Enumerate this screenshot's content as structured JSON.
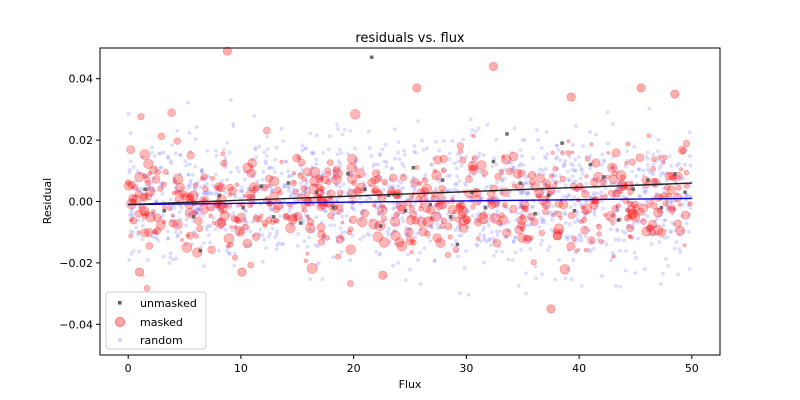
{
  "chart_data": {
    "type": "scatter",
    "title": "residuals vs. flux",
    "xlabel": "Flux",
    "ylabel": "Residual",
    "xlim": [
      -2.5,
      52.5
    ],
    "ylim": [
      -0.05,
      0.05
    ],
    "xticks": [
      0,
      10,
      20,
      30,
      40,
      50
    ],
    "xtick_labels": [
      "0",
      "10",
      "20",
      "30",
      "40",
      "50"
    ],
    "yticks": [
      -0.04,
      -0.02,
      0.0,
      0.02,
      0.04
    ],
    "ytick_labels": [
      "−0.04",
      "−0.02",
      "0.00",
      "0.02",
      "0.04"
    ],
    "grid": false,
    "legend_position": "lower-left",
    "series": [
      {
        "name": "unmasked",
        "color": "#555555",
        "marker": "square-small",
        "point_count": 40,
        "points": [
          [
            21.6,
            0.047
          ],
          [
            1.5,
            0.004
          ],
          [
            3.2,
            -0.003
          ],
          [
            5.8,
            -0.005
          ],
          [
            6.4,
            -0.016
          ],
          [
            8.1,
            0.002
          ],
          [
            11.8,
            0.005
          ],
          [
            12.9,
            -0.005
          ],
          [
            14.2,
            0.006
          ],
          [
            15.3,
            -0.007
          ],
          [
            16.7,
            0.003
          ],
          [
            18.2,
            -0.002
          ],
          [
            19.5,
            0.009
          ],
          [
            21.0,
            0.004
          ],
          [
            22.4,
            -0.008
          ],
          [
            23.1,
            0.002
          ],
          [
            24.6,
            -0.003
          ],
          [
            25.3,
            0.011
          ],
          [
            26.8,
            -0.001
          ],
          [
            27.9,
            0.007
          ],
          [
            28.6,
            -0.005
          ],
          [
            29.2,
            -0.014
          ],
          [
            30.5,
            0.003
          ],
          [
            31.7,
            -0.002
          ],
          [
            32.4,
            0.013
          ],
          [
            33.6,
            0.022
          ],
          [
            34.8,
            0.006
          ],
          [
            36.1,
            -0.004
          ],
          [
            37.3,
            0.002
          ],
          [
            38.5,
            0.019
          ],
          [
            39.6,
            -0.003
          ],
          [
            41.0,
            0.012
          ],
          [
            42.2,
            0.008
          ],
          [
            43.5,
            -0.006
          ],
          [
            44.8,
            0.004
          ],
          [
            46.1,
            0.007
          ],
          [
            47.3,
            -0.002
          ],
          [
            48.5,
            0.009
          ],
          [
            49.4,
            0.003
          ],
          [
            10.2,
            -0.002
          ]
        ]
      },
      {
        "name": "masked",
        "color": "#ff0000",
        "marker": "circle",
        "point_count": 600,
        "note_points": [
          [
            8.8,
            0.049
          ],
          [
            45.5,
            0.037
          ],
          [
            25.6,
            0.037
          ],
          [
            39.3,
            0.034
          ],
          [
            37.5,
            -0.035
          ],
          [
            22.6,
            -0.024
          ],
          [
            1.0,
            -0.023
          ],
          [
            10.1,
            -0.023
          ],
          [
            48.5,
            0.035
          ],
          [
            32.4,
            0.044
          ]
        ],
        "trend_start": [
          0,
          -0.001
        ],
        "trend_end": [
          50,
          0.006
        ],
        "trend_color": "#222222"
      },
      {
        "name": "random",
        "color": "#8c8cff",
        "marker": "circle-small",
        "point_count": 1400,
        "trend_start": [
          0,
          -0.001
        ],
        "trend_end": [
          50,
          0.001
        ],
        "trend_color": "#0000cc"
      }
    ]
  }
}
